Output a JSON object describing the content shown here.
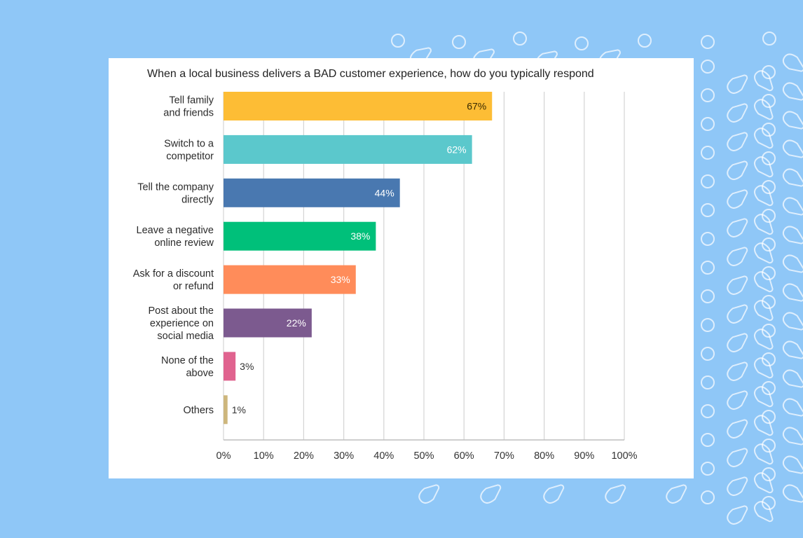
{
  "chart_data": {
    "type": "bar",
    "orientation": "horizontal",
    "title": "When a local business delivers a BAD customer experience, how do you typically respond",
    "categories": [
      [
        "Tell family",
        "and friends"
      ],
      [
        "Switch to a",
        "competitor"
      ],
      [
        "Tell the company",
        "directly"
      ],
      [
        "Leave a negative",
        "online review"
      ],
      [
        "Ask for a discount",
        "or refund"
      ],
      [
        "Post about the",
        "experience on",
        "social media"
      ],
      [
        "None of the",
        "above"
      ],
      [
        "Others"
      ]
    ],
    "values": [
      67,
      62,
      44,
      38,
      33,
      22,
      3,
      1
    ],
    "value_labels": [
      "67%",
      "62%",
      "44%",
      "38%",
      "33%",
      "22%",
      "3%",
      "1%"
    ],
    "colors": [
      "#fdbd35",
      "#5bc8cc",
      "#4978b0",
      "#00c07a",
      "#ff8c5a",
      "#7c5a8f",
      "#e0638f",
      "#cdb67c"
    ],
    "label_colors": [
      "#3a2a00",
      "#ffffff",
      "#ffffff",
      "#ffffff",
      "#ffffff",
      "#ffffff",
      "#333333",
      "#333333"
    ],
    "x_ticks": [
      "0%",
      "10%",
      "20%",
      "30%",
      "40%",
      "50%",
      "60%",
      "70%",
      "80%",
      "90%",
      "100%"
    ],
    "xlim": [
      0,
      100
    ],
    "grid": true,
    "legend": "none",
    "xlabel": "",
    "ylabel": ""
  },
  "colors": {
    "page_background": "#8fc7f7",
    "card_background": "#ffffff",
    "gridline": "#d4d4d4",
    "pattern": "#ffffff"
  }
}
